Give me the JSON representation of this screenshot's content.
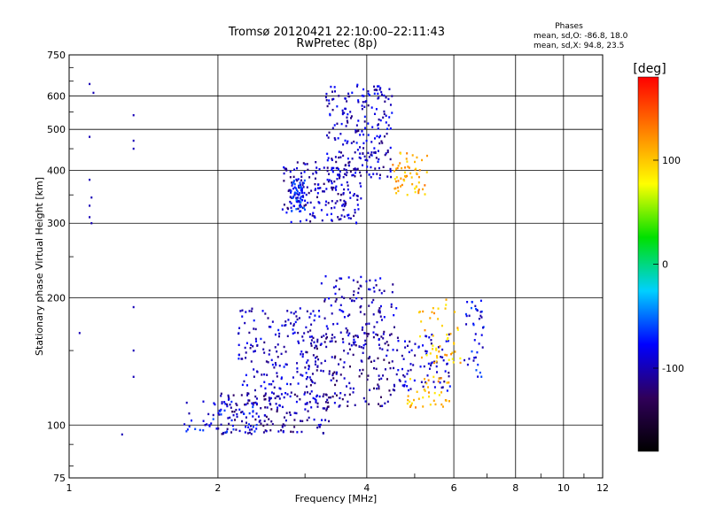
{
  "header": {
    "title": "Tromsø 20120421 22:10:00–22:11:43",
    "subtitle": "RwPretec (8p)",
    "stats_heading": "Phases",
    "stats_line_1": "mean, sd,O: -86.8, 18.0",
    "stats_line_2": "mean, sd,X:  94.8, 23.5"
  },
  "chart_data": {
    "type": "scatter",
    "xlabel": "Frequency [MHz]",
    "ylabel": "Stationary phase Virtual Height [km]",
    "xscale": "log",
    "yscale": "log",
    "xlim": [
      1,
      12
    ],
    "ylim": [
      75,
      750
    ],
    "x_ticks": [
      "1",
      "2",
      "4",
      "6",
      "8",
      "10",
      "12"
    ],
    "x_tick_values": [
      1,
      2,
      4,
      6,
      8,
      10,
      12
    ],
    "y_ticks": [
      "75",
      "100",
      "200",
      "300",
      "400",
      "500",
      "600",
      "750"
    ],
    "y_tick_values": [
      75,
      100,
      200,
      300,
      400,
      500,
      600,
      750
    ],
    "grid": true,
    "colorbar": {
      "label": "[deg]",
      "range": [
        -180,
        180
      ],
      "ticks": [
        "100",
        "0",
        "-100"
      ],
      "tick_values": [
        100,
        0,
        -100
      ],
      "colors": [
        "#000000",
        "#30005a",
        "#0000ff",
        "#00d0ff",
        "#00e000",
        "#ffff00",
        "#ff8000",
        "#ff0000"
      ]
    },
    "series": [
      {
        "points": [
          [
            1.1,
            640
          ],
          [
            1.12,
            610
          ],
          [
            1.1,
            480
          ],
          [
            1.1,
            380
          ],
          [
            1.11,
            345
          ],
          [
            1.1,
            330
          ],
          [
            1.1,
            310
          ],
          [
            1.11,
            300
          ],
          [
            1.35,
            540
          ],
          [
            1.35,
            470
          ],
          [
            1.35,
            450
          ],
          [
            1.35,
            190
          ],
          [
            1.35,
            150
          ],
          [
            1.35,
            130
          ],
          [
            1.05,
            165
          ],
          [
            1.28,
            95
          ]
        ]
      },
      {
        "groups": [
          {
            "x": [
              2.0,
              3.4
            ],
            "y": [
              95,
              120
            ],
            "phase": -105,
            "n": 160
          },
          {
            "x": [
              2.2,
              3.2
            ],
            "y": [
              115,
              190
            ],
            "phase": -95,
            "n": 180
          },
          {
            "x": [
              3.0,
              4.5
            ],
            "y": [
              110,
              165
            ],
            "phase": -110,
            "n": 160
          },
          {
            "x": [
              3.2,
              4.6
            ],
            "y": [
              150,
              225
            ],
            "phase": -100,
            "n": 120
          },
          {
            "x": [
              4.5,
              5.9
            ],
            "y": [
              120,
              165
            ],
            "phase": -95,
            "n": 90
          },
          {
            "x": [
              1.7,
              2.4
            ],
            "y": [
              95,
              115
            ],
            "phase": -80,
            "n": 60
          },
          {
            "x": [
              2.7,
              3.9
            ],
            "y": [
              300,
              420
            ],
            "phase": -100,
            "n": 200
          },
          {
            "x": [
              3.3,
              4.5
            ],
            "y": [
              380,
              640
            ],
            "phase": -95,
            "n": 220
          },
          {
            "x": [
              2.8,
              3.0
            ],
            "y": [
              320,
              380
            ],
            "phase": -70,
            "n": 60
          },
          {
            "x": [
              4.5,
              5.3
            ],
            "y": [
              350,
              440
            ],
            "phase": 110,
            "n": 60
          },
          {
            "x": [
              5.0,
              6.3
            ],
            "y": [
              140,
              200
            ],
            "phase": 100,
            "n": 50
          },
          {
            "x": [
              4.8,
              5.9
            ],
            "y": [
              110,
              130
            ],
            "phase": 105,
            "n": 40
          },
          {
            "x": [
              6.3,
              6.9
            ],
            "y": [
              130,
              200
            ],
            "phase": -80,
            "n": 40
          }
        ]
      }
    ]
  }
}
